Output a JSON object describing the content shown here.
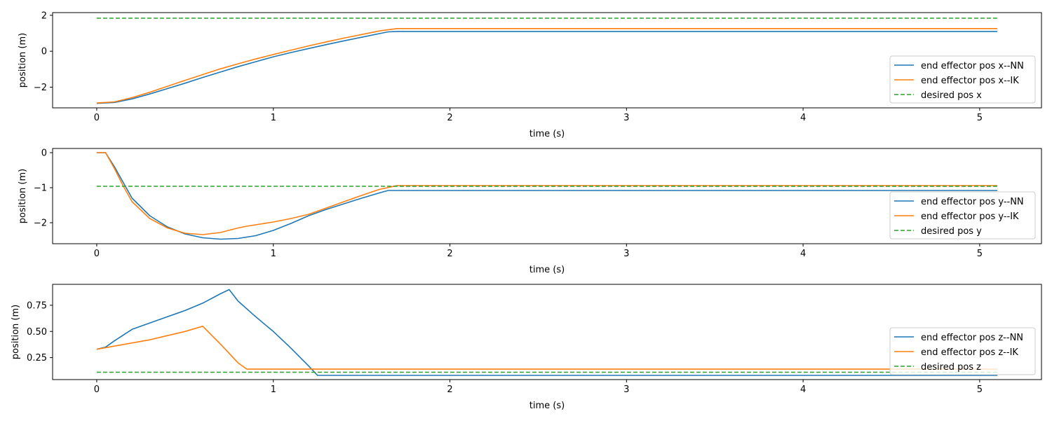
{
  "chart_data": [
    {
      "type": "line",
      "xlabel": "time (s)",
      "ylabel": "position (m)",
      "xlim": [
        -0.25,
        5.35
      ],
      "ylim": [
        -3.15,
        2.15
      ],
      "xticks": [
        0,
        1,
        2,
        3,
        4,
        5
      ],
      "yticks": [
        -2,
        0,
        2
      ],
      "ytick_labels": [
        "−2",
        "0",
        "2"
      ],
      "legend": "lower-right",
      "grid": false,
      "series": [
        {
          "name": "end effector pos x--NN",
          "color": "#1f77b4",
          "style": "solid",
          "points": [
            [
              0,
              -2.9
            ],
            [
              0.1,
              -2.85
            ],
            [
              0.2,
              -2.65
            ],
            [
              0.3,
              -2.38
            ],
            [
              0.4,
              -2.08
            ],
            [
              0.5,
              -1.78
            ],
            [
              0.6,
              -1.46
            ],
            [
              0.7,
              -1.16
            ],
            [
              0.8,
              -0.86
            ],
            [
              0.9,
              -0.58
            ],
            [
              1.0,
              -0.31
            ],
            [
              1.1,
              -0.07
            ],
            [
              1.2,
              0.15
            ],
            [
              1.3,
              0.37
            ],
            [
              1.4,
              0.58
            ],
            [
              1.5,
              0.78
            ],
            [
              1.6,
              0.98
            ],
            [
              1.65,
              1.08
            ],
            [
              1.7,
              1.1
            ],
            [
              5.1,
              1.1
            ]
          ]
        },
        {
          "name": "end effector pos x--IK",
          "color": "#ff7f0e",
          "style": "solid",
          "points": [
            [
              0,
              -2.88
            ],
            [
              0.1,
              -2.82
            ],
            [
              0.2,
              -2.58
            ],
            [
              0.3,
              -2.28
            ],
            [
              0.4,
              -1.95
            ],
            [
              0.5,
              -1.62
            ],
            [
              0.6,
              -1.3
            ],
            [
              0.7,
              -0.98
            ],
            [
              0.8,
              -0.7
            ],
            [
              0.9,
              -0.43
            ],
            [
              1.0,
              -0.18
            ],
            [
              1.1,
              0.06
            ],
            [
              1.2,
              0.3
            ],
            [
              1.3,
              0.52
            ],
            [
              1.4,
              0.73
            ],
            [
              1.5,
              0.93
            ],
            [
              1.6,
              1.13
            ],
            [
              1.7,
              1.26
            ],
            [
              5.1,
              1.26
            ]
          ]
        },
        {
          "name": "desired pos x",
          "color": "#2ca02c",
          "style": "dashed",
          "points": [
            [
              0,
              1.84
            ],
            [
              5.1,
              1.84
            ]
          ]
        }
      ]
    },
    {
      "type": "line",
      "xlabel": "time (s)",
      "ylabel": "position (m)",
      "xlim": [
        -0.25,
        5.35
      ],
      "ylim": [
        -2.6,
        0.12
      ],
      "xticks": [
        0,
        1,
        2,
        3,
        4,
        5
      ],
      "yticks": [
        -2,
        -1,
        0
      ],
      "ytick_labels": [
        "−2",
        "−1",
        "0"
      ],
      "legend": "lower-right",
      "grid": false,
      "series": [
        {
          "name": "end effector pos y--NN",
          "color": "#1f77b4",
          "style": "solid",
          "points": [
            [
              0,
              0
            ],
            [
              0.05,
              0
            ],
            [
              0.1,
              -0.4
            ],
            [
              0.15,
              -0.85
            ],
            [
              0.2,
              -1.3
            ],
            [
              0.3,
              -1.8
            ],
            [
              0.4,
              -2.12
            ],
            [
              0.5,
              -2.32
            ],
            [
              0.6,
              -2.43
            ],
            [
              0.7,
              -2.47
            ],
            [
              0.8,
              -2.45
            ],
            [
              0.9,
              -2.37
            ],
            [
              1.0,
              -2.22
            ],
            [
              1.1,
              -2.02
            ],
            [
              1.2,
              -1.8
            ],
            [
              1.3,
              -1.62
            ],
            [
              1.4,
              -1.46
            ],
            [
              1.5,
              -1.3
            ],
            [
              1.6,
              -1.15
            ],
            [
              1.65,
              -1.08
            ],
            [
              5.1,
              -1.08
            ]
          ]
        },
        {
          "name": "end effector pos y--IK",
          "color": "#ff7f0e",
          "style": "solid",
          "points": [
            [
              0,
              0
            ],
            [
              0.05,
              0
            ],
            [
              0.1,
              -0.45
            ],
            [
              0.15,
              -0.95
            ],
            [
              0.2,
              -1.4
            ],
            [
              0.3,
              -1.88
            ],
            [
              0.4,
              -2.15
            ],
            [
              0.5,
              -2.3
            ],
            [
              0.6,
              -2.34
            ],
            [
              0.7,
              -2.28
            ],
            [
              0.8,
              -2.15
            ],
            [
              0.85,
              -2.1
            ],
            [
              1.0,
              -1.98
            ],
            [
              1.1,
              -1.88
            ],
            [
              1.2,
              -1.76
            ],
            [
              1.3,
              -1.58
            ],
            [
              1.4,
              -1.4
            ],
            [
              1.5,
              -1.22
            ],
            [
              1.6,
              -1.05
            ],
            [
              1.7,
              -0.94
            ],
            [
              5.1,
              -0.94
            ]
          ]
        },
        {
          "name": "desired pos y",
          "color": "#2ca02c",
          "style": "dashed",
          "points": [
            [
              0,
              -0.96
            ],
            [
              5.1,
              -0.96
            ]
          ]
        }
      ]
    },
    {
      "type": "line",
      "xlabel": "time (s)",
      "ylabel": "position (m)",
      "xlim": [
        -0.25,
        5.35
      ],
      "ylim": [
        0.04,
        0.95
      ],
      "xticks": [
        0,
        1,
        2,
        3,
        4,
        5
      ],
      "yticks": [
        0.25,
        0.5,
        0.75
      ],
      "ytick_labels": [
        "0.25",
        "0.50",
        "0.75"
      ],
      "legend": "lower-right",
      "grid": false,
      "series": [
        {
          "name": "end effector pos z--NN",
          "color": "#1f77b4",
          "style": "solid",
          "points": [
            [
              0,
              0.33
            ],
            [
              0.05,
              0.35
            ],
            [
              0.1,
              0.41
            ],
            [
              0.2,
              0.52
            ],
            [
              0.3,
              0.58
            ],
            [
              0.4,
              0.64
            ],
            [
              0.5,
              0.7
            ],
            [
              0.6,
              0.77
            ],
            [
              0.7,
              0.86
            ],
            [
              0.75,
              0.9
            ],
            [
              0.8,
              0.79
            ],
            [
              0.9,
              0.64
            ],
            [
              1.0,
              0.5
            ],
            [
              1.1,
              0.34
            ],
            [
              1.2,
              0.17
            ],
            [
              1.25,
              0.08
            ],
            [
              5.1,
              0.08
            ]
          ]
        },
        {
          "name": "end effector pos z--IK",
          "color": "#ff7f0e",
          "style": "solid",
          "points": [
            [
              0,
              0.33
            ],
            [
              0.1,
              0.36
            ],
            [
              0.2,
              0.39
            ],
            [
              0.3,
              0.42
            ],
            [
              0.4,
              0.46
            ],
            [
              0.5,
              0.5
            ],
            [
              0.6,
              0.55
            ],
            [
              0.7,
              0.38
            ],
            [
              0.8,
              0.2
            ],
            [
              0.85,
              0.14
            ],
            [
              5.1,
              0.14
            ]
          ]
        },
        {
          "name": "desired pos z",
          "color": "#2ca02c",
          "style": "dashed",
          "points": [
            [
              0,
              0.11
            ],
            [
              5.1,
              0.11
            ]
          ]
        }
      ]
    }
  ]
}
